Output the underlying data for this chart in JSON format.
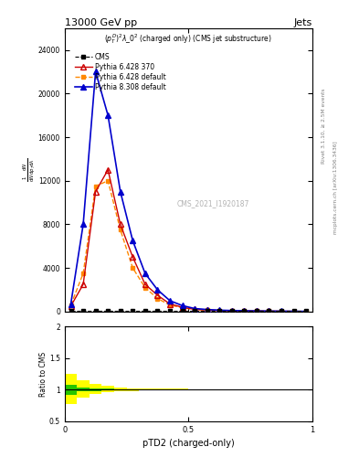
{
  "title": "13000 GeV pp",
  "title_right": "Jets",
  "plot_label": "$(p_T^D)^2\\lambda\\_0^2$ (charged only) (CMS jet substructure)",
  "watermark": "CMS_2021_I1920187",
  "rivet_label": "Rivet 3.1.10, ≥ 2.5M events",
  "mcplots_label": "mcplots.cern.ch [arXiv:1306.3436]",
  "xlabel": "pTD2 (charged-only)",
  "xlim": [
    0,
    1
  ],
  "ylim_main": [
    0,
    26000
  ],
  "ylim_ratio": [
    0.5,
    2.0
  ],
  "cms_x": [
    0.025,
    0.075,
    0.125,
    0.175,
    0.225,
    0.275,
    0.325,
    0.375,
    0.425,
    0.475,
    0.525,
    0.575,
    0.625,
    0.675,
    0.725,
    0.775,
    0.825,
    0.875,
    0.925,
    0.975
  ],
  "cms_y": [
    80,
    80,
    80,
    80,
    80,
    80,
    80,
    80,
    80,
    80,
    80,
    80,
    80,
    80,
    80,
    80,
    80,
    80,
    80,
    80
  ],
  "pythia6_370_x": [
    0.025,
    0.075,
    0.125,
    0.175,
    0.225,
    0.275,
    0.325,
    0.375,
    0.425,
    0.475,
    0.525,
    0.575,
    0.625,
    0.675,
    0.725,
    0.775,
    0.825,
    0.875,
    0.925,
    0.975
  ],
  "pythia6_370_y": [
    500,
    2500,
    11000,
    13000,
    8000,
    5000,
    2500,
    1500,
    700,
    400,
    200,
    150,
    100,
    80,
    60,
    50,
    40,
    30,
    20,
    15
  ],
  "pythia6_def_x": [
    0.025,
    0.075,
    0.125,
    0.175,
    0.225,
    0.275,
    0.325,
    0.375,
    0.425,
    0.475,
    0.525,
    0.575,
    0.625,
    0.675,
    0.725,
    0.775,
    0.825,
    0.875,
    0.925,
    0.975
  ],
  "pythia6_def_y": [
    600,
    3500,
    11500,
    12000,
    7500,
    4000,
    2200,
    1200,
    600,
    350,
    180,
    130,
    90,
    70,
    55,
    45,
    35,
    25,
    18,
    12
  ],
  "pythia8_def_x": [
    0.025,
    0.075,
    0.125,
    0.175,
    0.225,
    0.275,
    0.325,
    0.375,
    0.425,
    0.475,
    0.525,
    0.575,
    0.625,
    0.675,
    0.725,
    0.775,
    0.825,
    0.875,
    0.925,
    0.975
  ],
  "pythia8_def_y": [
    700,
    8000,
    22000,
    18000,
    11000,
    6500,
    3500,
    2000,
    1000,
    550,
    280,
    190,
    130,
    95,
    75,
    58,
    46,
    36,
    26,
    19
  ],
  "ratio_x": [
    0.025,
    0.075,
    0.125,
    0.175,
    0.225,
    0.275,
    0.325,
    0.375,
    0.425,
    0.475,
    0.525,
    0.575,
    0.625,
    0.675,
    0.725,
    0.775,
    0.825,
    0.875,
    0.925,
    0.975
  ],
  "ratio_green_lo": [
    0.92,
    0.97,
    0.98,
    0.985,
    0.99,
    0.99,
    0.99,
    0.99,
    0.99,
    0.99,
    0.99,
    0.99,
    0.99,
    0.99,
    0.99,
    0.99,
    0.99,
    0.99,
    0.99,
    0.99
  ],
  "ratio_green_hi": [
    1.08,
    1.03,
    1.02,
    1.015,
    1.01,
    1.01,
    1.01,
    1.01,
    1.01,
    1.01,
    1.01,
    1.01,
    1.01,
    1.01,
    1.01,
    1.01,
    1.01,
    1.01,
    1.01,
    1.01
  ],
  "ratio_yellow_lo": [
    0.78,
    0.87,
    0.93,
    0.96,
    0.975,
    0.98,
    0.985,
    0.985,
    0.988,
    0.988,
    0.99,
    0.99,
    0.99,
    0.99,
    0.99,
    0.99,
    0.99,
    0.99,
    1.0,
    1.0
  ],
  "ratio_yellow_hi": [
    1.25,
    1.15,
    1.09,
    1.06,
    1.04,
    1.025,
    1.02,
    1.018,
    1.015,
    1.014,
    1.012,
    1.012,
    1.012,
    1.012,
    1.012,
    1.012,
    1.012,
    1.012,
    1.01,
    1.01
  ],
  "color_cms": "#000000",
  "color_p6_370": "#cc0000",
  "color_p6_def": "#ff8800",
  "color_p8_def": "#0000cc",
  "color_green": "#00bb00",
  "color_yellow": "#ffff00",
  "yticks_main": [
    0,
    4000,
    8000,
    12000,
    16000,
    20000,
    24000
  ],
  "ytick_labels_main": [
    "0",
    "4000",
    "8000",
    "12000",
    "16000",
    "20000",
    "24000"
  ],
  "ratio_yticks": [
    0.5,
    1.0,
    1.5,
    2.0
  ],
  "ratio_ytick_labels": [
    "0.5",
    "1",
    "1.5",
    "2"
  ]
}
